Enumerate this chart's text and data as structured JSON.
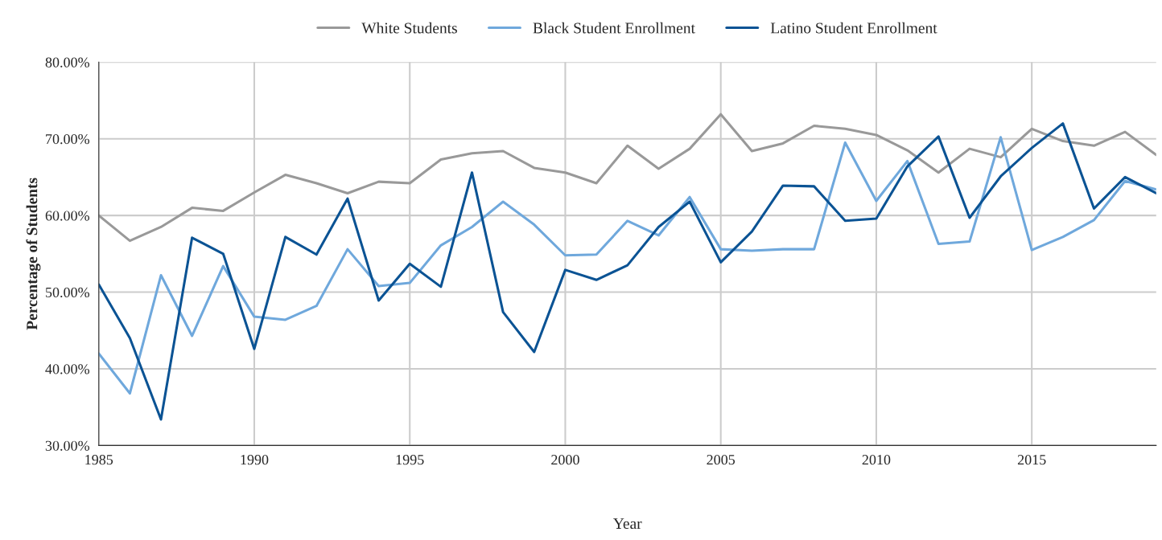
{
  "chart_data": {
    "type": "line",
    "xlabel": "Year",
    "ylabel": "Percentage of Students",
    "x": [
      1985,
      1986,
      1987,
      1988,
      1989,
      1990,
      1991,
      1992,
      1993,
      1994,
      1995,
      1996,
      1997,
      1998,
      1999,
      2000,
      2001,
      2002,
      2003,
      2004,
      2005,
      2006,
      2007,
      2008,
      2009,
      2010,
      2011,
      2012,
      2013,
      2014,
      2015,
      2016,
      2017,
      2018,
      2019
    ],
    "series": [
      {
        "name": "White Students",
        "color": "#999999",
        "values": [
          60,
          56.7,
          58.5,
          61,
          60.6,
          63,
          65.3,
          64.2,
          62.9,
          64.4,
          64.2,
          67.3,
          68.1,
          68.4,
          66.2,
          65.6,
          64.2,
          69.1,
          66.1,
          68.7,
          73.2,
          68.4,
          69.4,
          71.7,
          71.3,
          70.5,
          68.5,
          65.6,
          68.7,
          67.6,
          71.3,
          69.7,
          69.1,
          70.9,
          67.9
        ]
      },
      {
        "name": "Black Student Enrollment",
        "color": "#6fa8dc",
        "values": [
          42,
          36.8,
          52.2,
          44.3,
          53.4,
          46.8,
          46.4,
          48.2,
          55.6,
          50.8,
          51.2,
          56.1,
          58.5,
          61.8,
          58.8,
          54.8,
          54.9,
          59.3,
          57.4,
          62.4,
          55.6,
          55.4,
          55.6,
          55.6,
          69.5,
          61.9,
          67.1,
          56.3,
          56.6,
          70.2,
          55.5,
          57.2,
          59.4,
          64.5,
          63.4
        ]
      },
      {
        "name": "Latino Student Enrollment",
        "color": "#0b5394",
        "values": [
          51,
          44,
          33.4,
          57.1,
          55,
          42.6,
          57.2,
          54.9,
          62.2,
          48.9,
          53.7,
          50.7,
          65.6,
          47.4,
          42.2,
          52.9,
          51.6,
          53.5,
          58.5,
          61.8,
          53.9,
          57.9,
          63.9,
          63.8,
          59.3,
          59.6,
          66.4,
          70.3,
          59.7,
          65.1,
          68.8,
          72,
          60.9,
          65,
          62.9
        ]
      }
    ],
    "xlim": [
      1985,
      2019
    ],
    "xticks": [
      1985,
      1990,
      1995,
      2000,
      2005,
      2010,
      2015
    ],
    "ylim": [
      30,
      80
    ],
    "yticks": [
      {
        "value": 30,
        "label": "30.00%"
      },
      {
        "value": 40,
        "label": "40.00%"
      },
      {
        "value": 50,
        "label": "50.00%"
      },
      {
        "value": 60,
        "label": "60.00%"
      },
      {
        "value": 70,
        "label": "70.00%"
      },
      {
        "value": 80,
        "label": "80.00%"
      }
    ],
    "grid": true,
    "legend": "top",
    "line_style": "solid",
    "marker": "none"
  }
}
